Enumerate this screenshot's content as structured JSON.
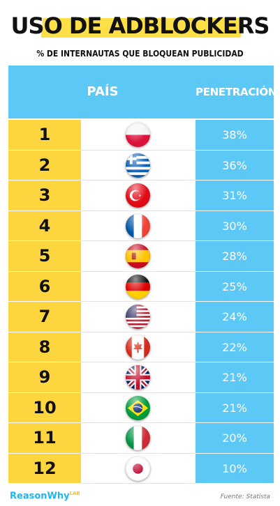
{
  "title": "USO DE ADBLOCKERS",
  "subtitle": "% DE INTERNAUTAS QUE BLOQUEAN PUBLICIDAD",
  "header": {
    "country_label": "PAÍS",
    "penetration_label": "PENETRACIÓN"
  },
  "brand": {
    "name": "ReasonWhy",
    "tag": "LAB"
  },
  "source": "Fuente: Statista",
  "colors": {
    "accent_yellow": "#fcd53f",
    "accent_blue": "#5bc8f5",
    "brand_blue": "#1fb6f0"
  },
  "chart_data": {
    "type": "table",
    "columns": [
      "",
      "PAÍS",
      "PENETRACIÓN"
    ],
    "rows": [
      {
        "rank": "1",
        "flag": "flag-poland-icon",
        "penetration": "38%"
      },
      {
        "rank": "2",
        "flag": "flag-greece-icon",
        "penetration": "36%"
      },
      {
        "rank": "3",
        "flag": "flag-turkey-icon",
        "penetration": "31%"
      },
      {
        "rank": "4",
        "flag": "flag-france-icon",
        "penetration": "30%"
      },
      {
        "rank": "5",
        "flag": "flag-spain-icon",
        "penetration": "28%"
      },
      {
        "rank": "6",
        "flag": "flag-germany-icon",
        "penetration": "25%"
      },
      {
        "rank": "7",
        "flag": "flag-usa-icon",
        "penetration": "24%"
      },
      {
        "rank": "8",
        "flag": "flag-canada-icon",
        "penetration": "22%"
      },
      {
        "rank": "9",
        "flag": "flag-uk-icon",
        "penetration": "21%"
      },
      {
        "rank": "10",
        "flag": "flag-brazil-icon",
        "penetration": "21%"
      },
      {
        "rank": "11",
        "flag": "flag-italy-icon",
        "penetration": "20%"
      },
      {
        "rank": "12",
        "flag": "flag-japan-icon",
        "penetration": "10%"
      }
    ]
  }
}
